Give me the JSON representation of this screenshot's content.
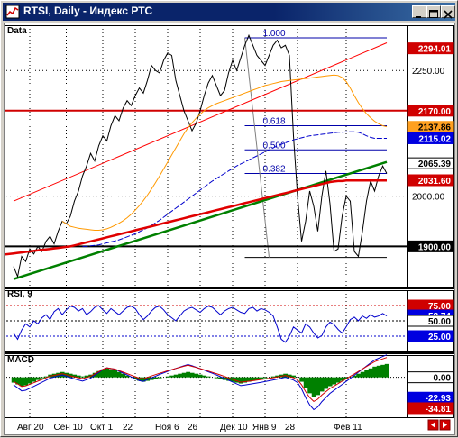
{
  "window": {
    "title": "RTSI, Daily - Индекс РТС",
    "minimize_icon": "minimize-icon",
    "maximize_icon": "maximize-icon",
    "close_icon": "close-icon"
  },
  "panels": {
    "price_label": "Data",
    "rsi_label": "RSI, 9",
    "macd_label": "MACD"
  },
  "colors": {
    "up_red": "#ff0000",
    "price_tag_red": "#d00000",
    "tag_blue": "#0000e0",
    "tag_orange": "#ffa020",
    "tag_green": "#00a000",
    "macd_hist": "#008000",
    "ma_orange": "#ff9900",
    "ma_blue": "#0000cc",
    "trend_green": "#008000"
  },
  "chart_data": {
    "type": "line",
    "price": {
      "ylim": [
        1820,
        2340
      ],
      "yticks": [
        "2250.00",
        "2000.00"
      ],
      "ytick_values": [
        2250,
        2000
      ],
      "levels": [
        {
          "value": 2170.0,
          "label": "2170.00",
          "color": "#d00000",
          "text_color": "#ffffff"
        },
        {
          "value": 1900.0,
          "label": "1900.00",
          "color": "#000000",
          "text_color": "#ffffff"
        }
      ],
      "tags": [
        {
          "value": 2294.01,
          "label": "2294.01",
          "bg": "#d00000",
          "fg": "#ffffff"
        },
        {
          "value": 2137.86,
          "label": "2137.86",
          "bg": "#ffa020",
          "fg": "#000000"
        },
        {
          "value": 2115.02,
          "label": "2115.02",
          "bg": "#0000e0",
          "fg": "#ffffff"
        },
        {
          "value": 2065.39,
          "label": "2065.39",
          "bg": "#ffffff",
          "fg": "#000000"
        },
        {
          "value": 2031.6,
          "label": "2031.60",
          "bg": "#d00000",
          "fg": "#ffffff"
        }
      ],
      "fibonacci": [
        {
          "level": "1.000",
          "value": 2315
        },
        {
          "level": "0.618",
          "value": 2140
        },
        {
          "level": "0.500",
          "value": 2092
        },
        {
          "level": "0.382",
          "value": 2045
        },
        {
          "level": "0",
          "value": 1878
        }
      ],
      "series": [
        {
          "name": "close",
          "color": "#000000",
          "values": [
            1860,
            1840,
            1880,
            1870,
            1895,
            1885,
            1900,
            1890,
            1910,
            1920,
            1905,
            1930,
            1950,
            1945,
            1960,
            1990,
            2010,
            2040,
            2060,
            2085,
            2070,
            2100,
            2120,
            2110,
            2140,
            2160,
            2150,
            2175,
            2190,
            2180,
            2200,
            2215,
            2205,
            2230,
            2260,
            2250,
            2245,
            2270,
            2285,
            2280,
            2230,
            2200,
            2170,
            2150,
            2130,
            2145,
            2170,
            2200,
            2225,
            2240,
            2220,
            2200,
            2210,
            2245,
            2270,
            2250,
            2275,
            2300,
            2320,
            2300,
            2280,
            2270,
            2260,
            2280,
            2300,
            2310,
            2295,
            2300,
            2280,
            2120,
            2000,
            1910,
            1950,
            2010,
            1980,
            1930,
            2000,
            2050,
            1985,
            1890,
            1895,
            1960,
            2000,
            1990,
            1890,
            1880,
            1930,
            1990,
            2030,
            2010,
            2040,
            2060,
            2045
          ]
        },
        {
          "name": "ma_orange",
          "color": "#ff9900",
          "values": [
            1950,
            1945,
            1940,
            1938,
            1936,
            1935,
            1934,
            1933,
            1932,
            1932,
            1933,
            1935,
            1938,
            1942,
            1946,
            1951,
            1957,
            1964,
            1972,
            1981,
            1991,
            2002,
            2014,
            2027,
            2040,
            2054,
            2068,
            2082,
            2096,
            2110,
            2124,
            2136,
            2146,
            2155,
            2163,
            2170,
            2176,
            2180,
            2184,
            2187,
            2190,
            2193,
            2196,
            2199,
            2202,
            2205,
            2208,
            2211,
            2214,
            2217,
            2220,
            2222,
            2224,
            2226,
            2228,
            2229,
            2230,
            2231,
            2232,
            2233,
            2234,
            2235,
            2236,
            2237,
            2238,
            2239,
            2240,
            2241,
            2240,
            2236,
            2228,
            2215,
            2200,
            2186,
            2174,
            2164,
            2156,
            2149,
            2144,
            2140,
            2138
          ]
        },
        {
          "name": "ma_blue",
          "color": "#0000cc",
          "values": [
            1900,
            1900,
            1901,
            1902,
            1903,
            1905,
            1907,
            1909,
            1911,
            1913,
            1916,
            1919,
            1922,
            1925,
            1929,
            1933,
            1937,
            1942,
            1947,
            1952,
            1958,
            1964,
            1970,
            1976,
            1982,
            1988,
            1994,
            2000,
            2006,
            2012,
            2018,
            2024,
            2030,
            2035,
            2040,
            2045,
            2050,
            2055,
            2060,
            2064,
            2068,
            2072,
            2076,
            2080,
            2084,
            2088,
            2092,
            2096,
            2100,
            2103,
            2106,
            2109,
            2112,
            2114,
            2116,
            2118,
            2120,
            2121,
            2122,
            2123,
            2124,
            2125,
            2126,
            2127,
            2127,
            2128,
            2128,
            2128,
            2127,
            2124,
            2120,
            2117,
            2115,
            2115,
            2115,
            2115
          ]
        },
        {
          "name": "ma_red",
          "color": "#e00000",
          "values": [
            1880,
            1880,
            1881,
            1882,
            1883,
            1884,
            1885,
            1886,
            1887,
            1888,
            1889,
            1890,
            1891,
            1892,
            1893,
            1894,
            1895,
            1896,
            1897,
            1898,
            1899,
            1900,
            1902,
            1904,
            1906,
            1908,
            1910,
            1912,
            1914,
            1916,
            1918,
            1920,
            1922,
            1924,
            1926,
            1928,
            1930,
            1932,
            1934,
            1936,
            1938,
            1940,
            1942,
            1944,
            1946,
            1948,
            1950,
            1952,
            1954,
            1956,
            1958,
            1960,
            1962,
            1964,
            1966,
            1968,
            1970,
            1972,
            1974,
            1976,
            1978,
            1980,
            1982,
            1984,
            1986,
            1988,
            1990,
            1992,
            1994,
            1996,
            1998,
            2000,
            2002,
            2004,
            2006,
            2008,
            2010,
            2012,
            2014,
            2016,
            2018,
            2020,
            2022,
            2024,
            2026,
            2028,
            2029,
            2030,
            2030,
            2031,
            2031,
            2031,
            2031,
            2031,
            2031,
            2031,
            2031,
            2031,
            2031,
            2031
          ]
        }
      ],
      "trendlines": [
        {
          "name": "red_channel",
          "color": "#ff0000",
          "from": [
            0,
            1990
          ],
          "to": [
            92,
            2305
          ]
        },
        {
          "name": "green_support",
          "color": "#008000",
          "from": [
            0,
            1835
          ],
          "to": [
            92,
            2068
          ]
        }
      ]
    },
    "rsi": {
      "ylim": [
        0,
        100
      ],
      "tags": [
        {
          "value": 75.0,
          "label": "75.00",
          "bg": "#d00000",
          "fg": "#ffffff"
        },
        {
          "value": 58.74,
          "label": "58.74",
          "bg": "#0000e0",
          "fg": "#ffffff"
        },
        {
          "value": 50.0,
          "label": "50.00",
          "bg": "#ffffff",
          "fg": "#000000"
        },
        {
          "value": 25.0,
          "label": "25.00",
          "bg": "#0000e0",
          "fg": "#ffffff"
        }
      ],
      "values": [
        30,
        20,
        35,
        45,
        40,
        50,
        45,
        55,
        60,
        52,
        65,
        70,
        60,
        68,
        74,
        72,
        66,
        70,
        60,
        65,
        72,
        75,
        68,
        62,
        70,
        65,
        60,
        66,
        72,
        74,
        70,
        60,
        52,
        58,
        66,
        72,
        74,
        68,
        60,
        55,
        50,
        58,
        66,
        70,
        72,
        68,
        64,
        70,
        74,
        72,
        66,
        60,
        66,
        70,
        72,
        68,
        64,
        62,
        70,
        72,
        66,
        70,
        68,
        64,
        58,
        40,
        20,
        15,
        25,
        40,
        35,
        30,
        45,
        40,
        30,
        22,
        26,
        40,
        48,
        44,
        36,
        30,
        40,
        52,
        56,
        50,
        58,
        54,
        60,
        56,
        58,
        62,
        58
      ]
    },
    "macd": {
      "ylim": [
        -45,
        25
      ],
      "tags": [
        {
          "value": 0.0,
          "label": "0.00",
          "bg": "#ffffff",
          "fg": "#000000"
        },
        {
          "value": -22.93,
          "label": "-22.93",
          "bg": "#0000e0",
          "fg": "#ffffff"
        },
        {
          "value": -34.81,
          "label": "-34.81",
          "bg": "#d00000",
          "fg": "#ffffff"
        }
      ],
      "histogram": [
        -6,
        -8,
        -10,
        -9,
        -7,
        -5,
        -3,
        -1,
        1,
        3,
        4,
        5,
        6,
        5,
        4,
        3,
        2,
        1,
        2,
        3,
        5,
        7,
        9,
        10,
        9,
        8,
        6,
        4,
        2,
        0,
        -2,
        -4,
        -5,
        -4,
        -3,
        -2,
        -1,
        0,
        1,
        2,
        3,
        4,
        5,
        6,
        5,
        4,
        3,
        2,
        1,
        0,
        -1,
        -2,
        -3,
        -4,
        -5,
        -6,
        -7,
        -6,
        -5,
        -4,
        -3,
        -2,
        -1,
        0,
        1,
        2,
        3,
        4,
        3,
        2,
        0,
        -5,
        -12,
        -18,
        -22,
        -20,
        -16,
        -13,
        -10,
        -8,
        -6,
        -4,
        -2,
        0,
        2,
        4,
        6,
        8,
        10,
        12,
        13,
        14,
        15
      ]
    },
    "x_labels": [
      "Авг 20",
      "Сен 10",
      "Окт 1",
      "22",
      "Ноя 6",
      "26",
      "Дек 10",
      "Янв 9",
      "28",
      "Фев 11"
    ],
    "x_label_index": [
      4,
      13,
      22,
      30,
      38,
      46,
      54,
      62,
      70,
      82
    ],
    "n_points": 93
  }
}
